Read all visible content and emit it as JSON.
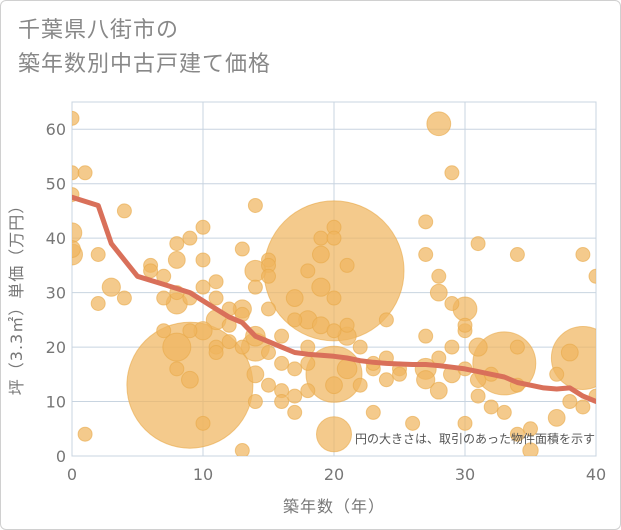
{
  "title": {
    "line1": "千葉県八街市の",
    "line2": "築年数別中古戸建て価格"
  },
  "chart_data": {
    "type": "scatter",
    "title": "千葉県八街市の築年数別中古戸建て価格",
    "xlabel": "築年数（年）",
    "ylabel": "坪（3.3㎡）単価（万円）",
    "xlim": [
      0,
      40
    ],
    "ylim": [
      0,
      65
    ],
    "xticks": [
      "0",
      "10",
      "20",
      "30",
      "40"
    ],
    "yticks": [
      "0",
      "10",
      "20",
      "30",
      "40",
      "50",
      "60"
    ],
    "grid": true,
    "note": "円の大きさは、取引のあった物件面積を示す",
    "colors": {
      "bubble": "#f0b660",
      "bubble_stroke": "#e8a848",
      "trend": "#d9705a",
      "grid": "#c8d4e0"
    },
    "series": [
      {
        "type": "bubble",
        "points": [
          [
            0,
            62,
            1
          ],
          [
            0,
            52,
            1
          ],
          [
            0,
            48,
            1
          ],
          [
            0,
            41,
            1.4
          ],
          [
            0,
            38,
            1.2
          ],
          [
            0,
            37,
            1.5
          ],
          [
            1,
            52,
            1
          ],
          [
            1,
            4,
            1
          ],
          [
            2,
            37,
            1
          ],
          [
            2,
            28,
            1
          ],
          [
            3,
            31,
            1.3
          ],
          [
            4,
            45,
            1
          ],
          [
            4,
            29,
            1
          ],
          [
            6,
            35,
            1
          ],
          [
            6,
            34,
            1
          ],
          [
            7,
            33,
            1
          ],
          [
            7,
            29,
            1
          ],
          [
            7,
            23,
            1
          ],
          [
            8,
            39,
            1
          ],
          [
            8,
            36,
            1.2
          ],
          [
            8,
            30,
            1
          ],
          [
            8,
            28,
            1.5
          ],
          [
            8,
            20,
            2
          ],
          [
            8,
            16,
            1
          ],
          [
            9,
            40,
            1
          ],
          [
            9,
            29,
            1
          ],
          [
            9,
            23,
            1
          ],
          [
            9,
            13,
            9
          ],
          [
            9,
            14,
            1.2
          ],
          [
            10,
            42,
            1
          ],
          [
            10,
            36,
            1
          ],
          [
            10,
            31,
            1
          ],
          [
            10,
            23,
            1.3
          ],
          [
            10,
            6,
            1
          ],
          [
            11,
            32,
            1
          ],
          [
            11,
            29,
            1
          ],
          [
            11,
            25,
            1.4
          ],
          [
            11,
            20,
            1
          ],
          [
            11,
            19,
            1
          ],
          [
            12,
            27,
            1
          ],
          [
            12,
            24,
            1
          ],
          [
            12,
            21,
            1
          ],
          [
            13,
            38,
            1
          ],
          [
            13,
            27,
            1.3
          ],
          [
            13,
            26,
            1
          ],
          [
            13,
            20,
            1
          ],
          [
            13,
            1,
            1
          ],
          [
            14,
            46,
            1
          ],
          [
            14,
            34,
            1.5
          ],
          [
            14,
            31,
            1
          ],
          [
            14,
            22,
            1.4
          ],
          [
            14,
            20,
            2
          ],
          [
            14,
            10,
            1
          ],
          [
            14,
            15,
            1.2
          ],
          [
            15,
            36,
            1
          ],
          [
            15,
            35,
            1
          ],
          [
            15,
            33,
            1
          ],
          [
            15,
            27,
            1
          ],
          [
            15,
            19,
            1
          ],
          [
            15,
            13,
            1
          ],
          [
            16,
            22,
            1
          ],
          [
            16,
            17,
            1
          ],
          [
            16,
            12,
            1
          ],
          [
            16,
            10,
            1
          ],
          [
            17,
            29,
            1.2
          ],
          [
            17,
            25,
            1
          ],
          [
            17,
            16,
            1
          ],
          [
            17,
            11,
            1
          ],
          [
            17,
            8,
            1
          ],
          [
            18,
            34,
            1
          ],
          [
            18,
            25,
            1.3
          ],
          [
            18,
            20,
            1
          ],
          [
            18,
            17,
            1
          ],
          [
            18,
            12,
            1
          ],
          [
            19,
            40,
            1
          ],
          [
            19,
            31,
            1.3
          ],
          [
            19,
            24,
            1.2
          ],
          [
            19,
            37,
            1.2
          ],
          [
            20,
            42,
            1
          ],
          [
            20,
            40,
            1
          ],
          [
            20,
            34,
            10
          ],
          [
            20,
            29,
            1
          ],
          [
            20,
            23,
            1
          ],
          [
            20,
            15,
            4
          ],
          [
            20,
            13,
            1.2
          ],
          [
            20,
            4,
            2.5
          ],
          [
            21,
            35,
            1
          ],
          [
            21,
            24,
            1
          ],
          [
            21,
            22,
            1.3
          ],
          [
            21,
            16,
            1.4
          ],
          [
            22,
            20,
            1
          ],
          [
            22,
            13,
            1
          ],
          [
            23,
            16,
            1
          ],
          [
            23,
            8,
            1
          ],
          [
            23,
            17,
            1
          ],
          [
            24,
            14,
            1
          ],
          [
            24,
            18,
            1
          ],
          [
            24,
            25,
            1
          ],
          [
            25,
            16,
            1
          ],
          [
            25,
            15,
            1
          ],
          [
            26,
            6,
            1
          ],
          [
            27,
            43,
            1
          ],
          [
            27,
            37,
            1
          ],
          [
            27,
            22,
            1
          ],
          [
            27,
            14,
            1.3
          ],
          [
            27,
            16,
            1.5
          ],
          [
            28,
            61,
            1.7
          ],
          [
            28,
            33,
            1
          ],
          [
            28,
            30,
            1.2
          ],
          [
            28,
            18,
            1
          ],
          [
            28,
            12,
            1.2
          ],
          [
            29,
            52,
            1
          ],
          [
            29,
            28,
            1
          ],
          [
            29,
            20,
            1
          ],
          [
            29,
            15,
            1.2
          ],
          [
            30,
            27,
            1.7
          ],
          [
            30,
            23,
            1
          ],
          [
            30,
            24,
            1
          ],
          [
            30,
            16,
            1
          ],
          [
            30,
            6,
            1
          ],
          [
            31,
            39,
            1
          ],
          [
            31,
            20,
            1.3
          ],
          [
            31,
            14,
            1.1
          ],
          [
            31,
            11,
            1
          ],
          [
            32,
            15,
            1
          ],
          [
            32,
            9,
            1
          ],
          [
            33,
            17,
            4.5
          ],
          [
            33,
            8,
            1
          ],
          [
            34,
            37,
            1
          ],
          [
            34,
            20,
            1
          ],
          [
            34,
            13,
            1
          ],
          [
            34,
            4,
            1
          ],
          [
            35,
            5,
            1
          ],
          [
            35,
            1,
            1.1
          ],
          [
            37,
            15,
            1
          ],
          [
            37,
            7,
            1.2
          ],
          [
            38,
            19,
            1.2
          ],
          [
            38,
            10,
            1
          ],
          [
            39,
            37,
            1
          ],
          [
            39,
            18,
            4.5
          ],
          [
            39,
            9,
            1
          ],
          [
            40,
            33,
            1
          ],
          [
            40,
            11,
            1
          ]
        ]
      },
      {
        "type": "line",
        "x": [
          0,
          2,
          3,
          5,
          7,
          9,
          11,
          12,
          13,
          14,
          15,
          16,
          17,
          18,
          19,
          20,
          21,
          22,
          23,
          24,
          25,
          26,
          27,
          28,
          29,
          30,
          31,
          32,
          33,
          34,
          35,
          36,
          37,
          38,
          39,
          40
        ],
        "y": [
          47.5,
          46,
          39,
          33,
          31.5,
          30,
          27,
          25.5,
          24.5,
          22,
          21,
          20,
          19,
          18.7,
          18.5,
          18.3,
          18,
          17.5,
          17.2,
          17,
          16.9,
          16.8,
          16.8,
          16.6,
          16.3,
          16,
          15.5,
          15,
          14.5,
          13.5,
          13,
          12.5,
          12.3,
          12.5,
          11,
          10
        ]
      }
    ]
  }
}
